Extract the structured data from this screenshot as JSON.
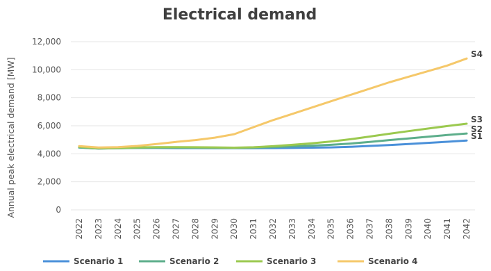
{
  "chart_data": {
    "type": "line",
    "title": "Electrical demand",
    "xlabel": "",
    "ylabel": "Annual peak electrical demand [MW]",
    "x": [
      "2022",
      "2023",
      "2024",
      "2025",
      "2026",
      "2027",
      "2028",
      "2029",
      "2030",
      "2031",
      "2032",
      "2033",
      "2034",
      "2035",
      "2036",
      "2037",
      "2038",
      "2039",
      "2040",
      "2041",
      "2042"
    ],
    "ylim": [
      0,
      12000
    ],
    "yticks": [
      "0",
      "2,000",
      "4,000",
      "6,000",
      "8,000",
      "10,000",
      "12,000"
    ],
    "ytick_values": [
      0,
      2000,
      4000,
      6000,
      8000,
      10000,
      12000
    ],
    "grid": true,
    "legend_position": "bottom",
    "series": [
      {
        "name": "Scenario 1",
        "end_label": "S1",
        "color": "#4a90d9",
        "values": [
          4450,
          4380,
          4400,
          4420,
          4420,
          4410,
          4410,
          4400,
          4400,
          4400,
          4410,
          4420,
          4440,
          4460,
          4500,
          4560,
          4620,
          4700,
          4780,
          4860,
          4950
        ]
      },
      {
        "name": "Scenario 2",
        "end_label": "S2",
        "color": "#5dae8b",
        "values": [
          4450,
          4380,
          4400,
          4430,
          4440,
          4440,
          4440,
          4430,
          4420,
          4440,
          4480,
          4530,
          4580,
          4640,
          4730,
          4850,
          4980,
          5100,
          5220,
          5340,
          5450
        ]
      },
      {
        "name": "Scenario 3",
        "end_label": "S3",
        "color": "#9bc94f",
        "values": [
          4500,
          4400,
          4420,
          4460,
          4480,
          4480,
          4470,
          4460,
          4440,
          4470,
          4540,
          4640,
          4750,
          4880,
          5040,
          5230,
          5430,
          5620,
          5800,
          5980,
          6150
        ]
      },
      {
        "name": "Scenario 4",
        "end_label": "S4",
        "color": "#f5c86a",
        "values": [
          4550,
          4450,
          4480,
          4560,
          4700,
          4850,
          4980,
          5150,
          5400,
          5900,
          6400,
          6850,
          7300,
          7750,
          8200,
          8650,
          9100,
          9500,
          9900,
          10300,
          10800
        ]
      }
    ]
  }
}
